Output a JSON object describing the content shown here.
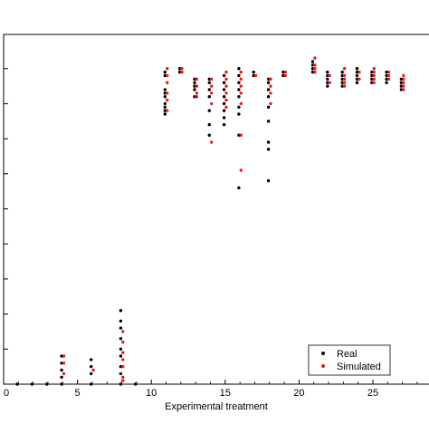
{
  "chart_data": {
    "type": "scatter",
    "xlabel": "Experimental treatment",
    "ylabel": "",
    "xlim": [
      0,
      29
    ],
    "ylim": [
      0,
      100
    ],
    "xticks": [
      "0",
      "5",
      "10",
      "15",
      "20",
      "25"
    ],
    "yticks": [],
    "grid": false,
    "legend_position": "bottom-right",
    "colors": {
      "Real": "#000000",
      "Simulated": "#e41a1c"
    },
    "series": [
      {
        "name": "Real",
        "points": [
          [
            1,
            0
          ],
          [
            2,
            0
          ],
          [
            3,
            0
          ],
          [
            4,
            0
          ],
          [
            4,
            2
          ],
          [
            4,
            4
          ],
          [
            4,
            6
          ],
          [
            4,
            8
          ],
          [
            6,
            0
          ],
          [
            6,
            3
          ],
          [
            6,
            5
          ],
          [
            6,
            7
          ],
          [
            8,
            0
          ],
          [
            8,
            3
          ],
          [
            8,
            5
          ],
          [
            8,
            8
          ],
          [
            8,
            10
          ],
          [
            8,
            13
          ],
          [
            8,
            16
          ],
          [
            8,
            18
          ],
          [
            8,
            21
          ],
          [
            9,
            0
          ],
          [
            11,
            77
          ],
          [
            11,
            78
          ],
          [
            11,
            79
          ],
          [
            11,
            80
          ],
          [
            11,
            82
          ],
          [
            11,
            83
          ],
          [
            11,
            84
          ],
          [
            11,
            88
          ],
          [
            11,
            89
          ],
          [
            12,
            89
          ],
          [
            12,
            90
          ],
          [
            13,
            82
          ],
          [
            13,
            84
          ],
          [
            13,
            85
          ],
          [
            13,
            86
          ],
          [
            13,
            87
          ],
          [
            14,
            71
          ],
          [
            14,
            74
          ],
          [
            14,
            78
          ],
          [
            14,
            82
          ],
          [
            14,
            84
          ],
          [
            14,
            86
          ],
          [
            14,
            87
          ],
          [
            15,
            74
          ],
          [
            15,
            76
          ],
          [
            15,
            78
          ],
          [
            15,
            80
          ],
          [
            15,
            82
          ],
          [
            15,
            84
          ],
          [
            15,
            86
          ],
          [
            15,
            88
          ],
          [
            16,
            56
          ],
          [
            16,
            71
          ],
          [
            16,
            77
          ],
          [
            16,
            79
          ],
          [
            16,
            82
          ],
          [
            16,
            84
          ],
          [
            16,
            86
          ],
          [
            16,
            88
          ],
          [
            16,
            90
          ],
          [
            17,
            88
          ],
          [
            17,
            89
          ],
          [
            18,
            58
          ],
          [
            18,
            67
          ],
          [
            18,
            69
          ],
          [
            18,
            75
          ],
          [
            18,
            79
          ],
          [
            18,
            82
          ],
          [
            18,
            84
          ],
          [
            18,
            86
          ],
          [
            18,
            87
          ],
          [
            19,
            88
          ],
          [
            19,
            89
          ],
          [
            21,
            89
          ],
          [
            21,
            90
          ],
          [
            21,
            91
          ],
          [
            21,
            92
          ],
          [
            22,
            85
          ],
          [
            22,
            86
          ],
          [
            22,
            87
          ],
          [
            22,
            88
          ],
          [
            22,
            89
          ],
          [
            23,
            85
          ],
          [
            23,
            86
          ],
          [
            23,
            87
          ],
          [
            23,
            88
          ],
          [
            23,
            89
          ],
          [
            24,
            86
          ],
          [
            24,
            87
          ],
          [
            24,
            88
          ],
          [
            24,
            89
          ],
          [
            24,
            90
          ],
          [
            25,
            86
          ],
          [
            25,
            87
          ],
          [
            25,
            88
          ],
          [
            25,
            89
          ],
          [
            26,
            86
          ],
          [
            26,
            87
          ],
          [
            26,
            88
          ],
          [
            26,
            89
          ],
          [
            27,
            84
          ],
          [
            27,
            85
          ],
          [
            27,
            86
          ],
          [
            27,
            87
          ]
        ]
      },
      {
        "name": "Simulated",
        "points": [
          [
            4,
            3
          ],
          [
            4,
            6
          ],
          [
            4,
            8
          ],
          [
            6,
            4
          ],
          [
            8,
            1
          ],
          [
            8,
            2
          ],
          [
            8,
            5
          ],
          [
            8,
            7
          ],
          [
            8,
            9
          ],
          [
            8,
            12
          ],
          [
            8,
            15
          ],
          [
            11,
            78
          ],
          [
            11,
            81
          ],
          [
            11,
            83
          ],
          [
            11,
            86
          ],
          [
            11,
            88
          ],
          [
            11,
            90
          ],
          [
            12,
            89
          ],
          [
            12,
            90
          ],
          [
            13,
            82
          ],
          [
            13,
            83
          ],
          [
            13,
            85
          ],
          [
            13,
            87
          ],
          [
            14,
            69
          ],
          [
            14,
            80
          ],
          [
            14,
            83
          ],
          [
            14,
            85
          ],
          [
            14,
            87
          ],
          [
            15,
            79
          ],
          [
            15,
            81
          ],
          [
            15,
            83
          ],
          [
            15,
            85
          ],
          [
            15,
            87
          ],
          [
            15,
            89
          ],
          [
            16,
            61
          ],
          [
            16,
            71
          ],
          [
            16,
            80
          ],
          [
            16,
            83
          ],
          [
            16,
            85
          ],
          [
            16,
            87
          ],
          [
            16,
            89
          ],
          [
            17,
            88
          ],
          [
            18,
            80
          ],
          [
            18,
            83
          ],
          [
            18,
            85
          ],
          [
            18,
            87
          ],
          [
            19,
            88
          ],
          [
            19,
            89
          ],
          [
            21,
            89
          ],
          [
            21,
            90
          ],
          [
            21,
            91
          ],
          [
            21,
            93
          ],
          [
            22,
            86
          ],
          [
            22,
            88
          ],
          [
            23,
            85
          ],
          [
            23,
            86
          ],
          [
            23,
            87
          ],
          [
            23,
            88
          ],
          [
            23,
            90
          ],
          [
            24,
            87
          ],
          [
            24,
            89
          ],
          [
            25,
            86
          ],
          [
            25,
            87
          ],
          [
            25,
            88
          ],
          [
            25,
            89
          ],
          [
            25,
            90
          ],
          [
            26,
            87
          ],
          [
            26,
            88
          ],
          [
            26,
            89
          ],
          [
            27,
            84
          ],
          [
            27,
            85
          ],
          [
            27,
            86
          ],
          [
            27,
            87
          ],
          [
            27,
            88
          ]
        ]
      }
    ]
  }
}
